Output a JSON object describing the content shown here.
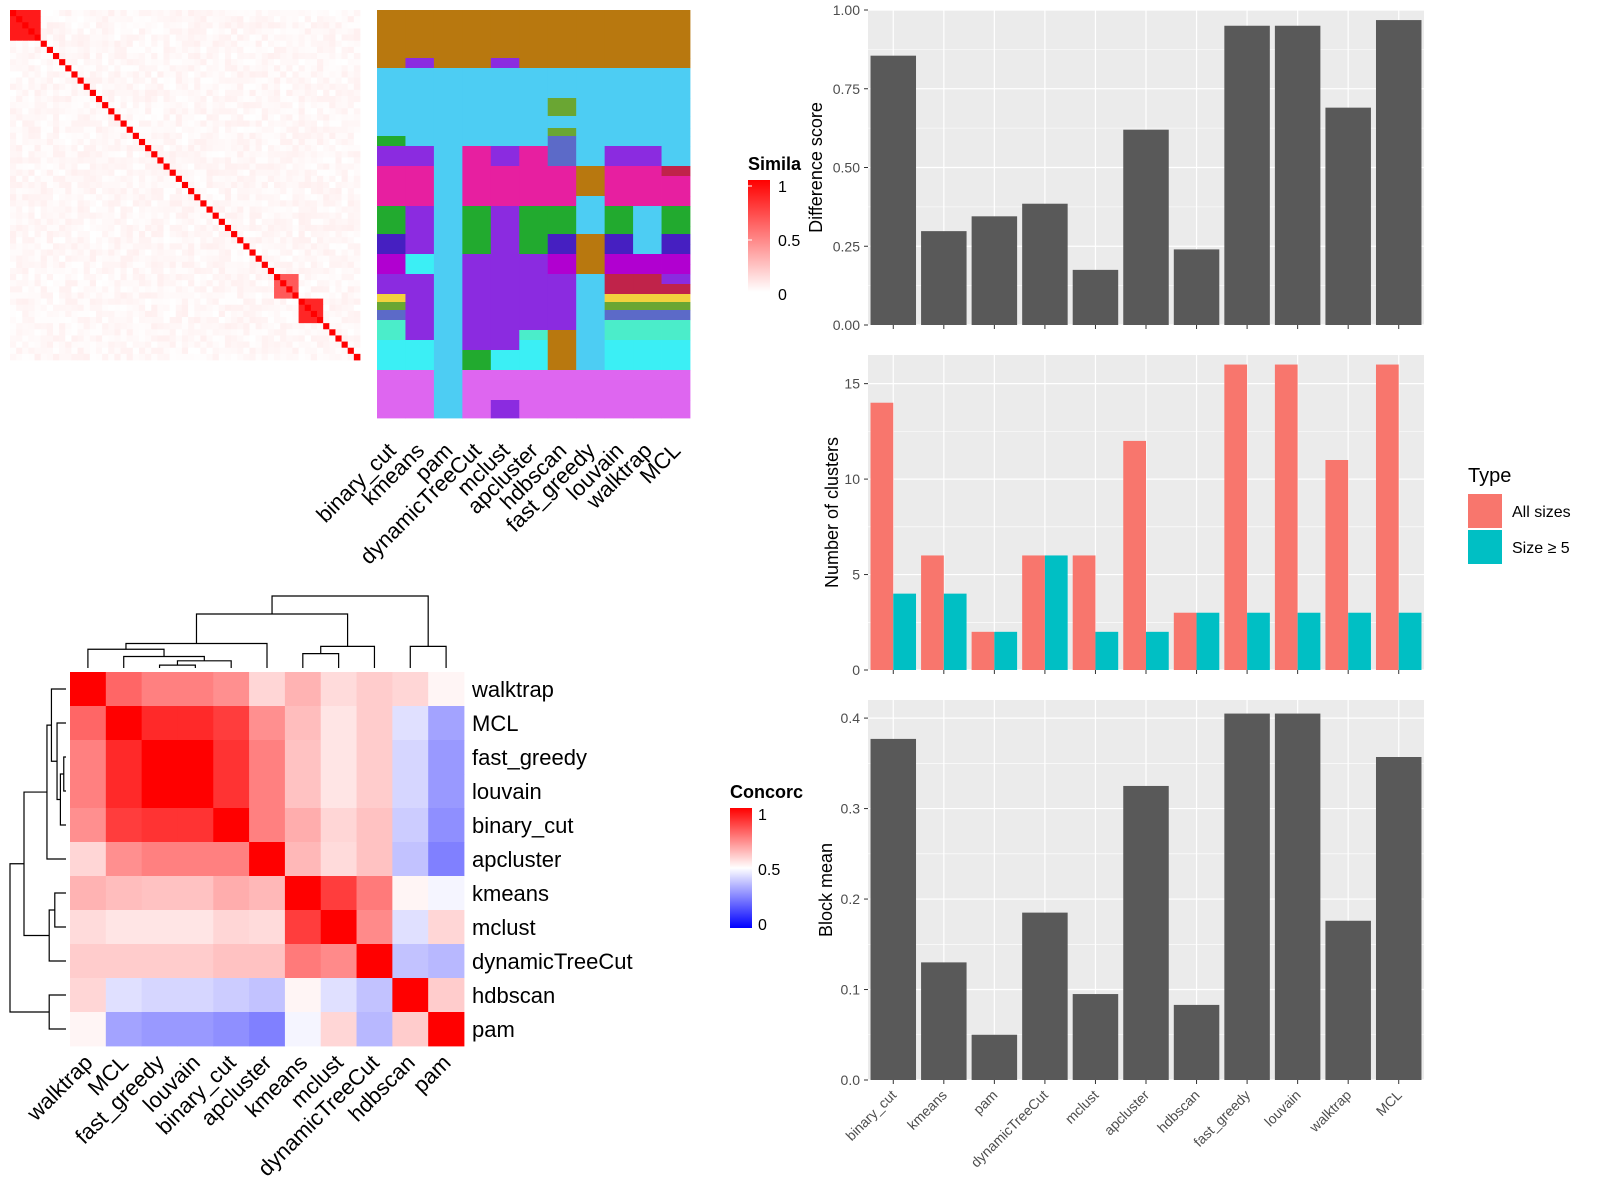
{
  "chart_data": [
    {
      "id": "similarity_heatmap",
      "type": "heatmap",
      "title": "",
      "legend_title": "Simila",
      "legend_ticks": [
        "1",
        "0.5",
        "0"
      ],
      "color_low": "#ffffff",
      "color_high": "#ff0000",
      "n_samples": 57,
      "diag_value": 1.0,
      "blocks": [
        {
          "start": 0,
          "end": 4,
          "value": 0.9
        },
        {
          "start": 43,
          "end": 46,
          "value": 0.65
        },
        {
          "start": 47,
          "end": 50,
          "value": 0.85
        }
      ],
      "background_value": 0.06
    },
    {
      "id": "cluster_assignment_heatmap",
      "type": "heatmap",
      "methods": [
        "binary_cut",
        "kmeans",
        "pam",
        "dynamicTreeCut",
        "mclust",
        "apcluster",
        "hdbscan",
        "fast_greedy",
        "louvain",
        "walktrap",
        "MCL"
      ],
      "palette": [
        "#B8780F",
        "#4DCDF3",
        "#8B2BE0",
        "#E71FA0",
        "#22AA2F",
        "#461FC1",
        "#B100D0",
        "#C0234A",
        "#F2D23E",
        "#6AA633",
        "#4BEDCA",
        "#3BEFF5",
        "#DE66F0",
        "#5C6AC8"
      ],
      "rows": [
        {
          "height": 48,
          "assign": [
            0,
            0,
            0,
            0,
            0,
            0,
            0,
            0,
            0,
            0,
            0
          ]
        },
        {
          "height": 10,
          "assign": [
            0,
            2,
            0,
            0,
            2,
            0,
            0,
            0,
            0,
            0,
            0
          ]
        },
        {
          "height": 30,
          "assign": [
            1,
            1,
            1,
            1,
            1,
            1,
            1,
            1,
            1,
            1,
            1
          ]
        },
        {
          "height": 18,
          "assign": [
            1,
            1,
            1,
            1,
            1,
            1,
            9,
            1,
            1,
            1,
            1
          ]
        },
        {
          "height": 12,
          "assign": [
            1,
            1,
            1,
            1,
            1,
            1,
            1,
            1,
            1,
            1,
            1
          ]
        },
        {
          "height": 8,
          "assign": [
            1,
            1,
            1,
            1,
            1,
            1,
            9,
            1,
            1,
            1,
            1
          ]
        },
        {
          "height": 10,
          "assign": [
            4,
            1,
            1,
            1,
            1,
            1,
            13,
            1,
            1,
            1,
            1
          ]
        },
        {
          "height": 20,
          "assign": [
            2,
            2,
            1,
            3,
            2,
            3,
            13,
            1,
            2,
            2,
            1
          ]
        },
        {
          "height": 10,
          "assign": [
            3,
            3,
            1,
            3,
            3,
            3,
            3,
            0,
            3,
            3,
            7
          ]
        },
        {
          "height": 20,
          "assign": [
            3,
            3,
            1,
            3,
            3,
            3,
            3,
            0,
            3,
            3,
            3
          ]
        },
        {
          "height": 10,
          "assign": [
            3,
            3,
            1,
            3,
            3,
            3,
            3,
            1,
            3,
            3,
            3
          ]
        },
        {
          "height": 20,
          "assign": [
            4,
            2,
            1,
            4,
            2,
            4,
            4,
            1,
            4,
            1,
            4
          ]
        },
        {
          "height": 8,
          "assign": [
            4,
            2,
            1,
            4,
            2,
            4,
            4,
            1,
            4,
            1,
            4
          ]
        },
        {
          "height": 10,
          "assign": [
            5,
            2,
            1,
            4,
            2,
            4,
            5,
            0,
            5,
            1,
            5
          ]
        },
        {
          "height": 10,
          "assign": [
            5,
            2,
            1,
            4,
            2,
            4,
            5,
            0,
            5,
            1,
            5
          ]
        },
        {
          "height": 10,
          "assign": [
            6,
            11,
            1,
            2,
            2,
            2,
            6,
            0,
            6,
            6,
            6
          ]
        },
        {
          "height": 10,
          "assign": [
            6,
            11,
            1,
            2,
            2,
            2,
            6,
            0,
            6,
            6,
            6
          ]
        },
        {
          "height": 10,
          "assign": [
            2,
            2,
            1,
            2,
            2,
            2,
            2,
            1,
            7,
            7,
            2
          ]
        },
        {
          "height": 10,
          "assign": [
            2,
            2,
            1,
            2,
            2,
            2,
            2,
            1,
            7,
            7,
            7
          ]
        },
        {
          "height": 8,
          "assign": [
            8,
            2,
            1,
            2,
            2,
            2,
            2,
            1,
            8,
            8,
            8
          ]
        },
        {
          "height": 8,
          "assign": [
            9,
            2,
            1,
            2,
            2,
            2,
            2,
            1,
            9,
            9,
            9
          ]
        },
        {
          "height": 10,
          "assign": [
            13,
            2,
            1,
            2,
            2,
            2,
            2,
            1,
            13,
            13,
            13
          ]
        },
        {
          "height": 10,
          "assign": [
            10,
            2,
            1,
            2,
            2,
            2,
            2,
            1,
            10,
            10,
            10
          ]
        },
        {
          "height": 10,
          "assign": [
            10,
            2,
            1,
            2,
            2,
            10,
            0,
            1,
            10,
            10,
            10
          ]
        },
        {
          "height": 10,
          "assign": [
            11,
            11,
            1,
            2,
            2,
            11,
            0,
            1,
            11,
            11,
            11
          ]
        },
        {
          "height": 20,
          "assign": [
            11,
            11,
            1,
            4,
            11,
            11,
            0,
            1,
            11,
            11,
            11
          ]
        },
        {
          "height": 30,
          "assign": [
            12,
            12,
            1,
            12,
            12,
            12,
            12,
            12,
            12,
            12,
            12
          ]
        },
        {
          "height": 18,
          "assign": [
            12,
            12,
            1,
            12,
            2,
            12,
            12,
            12,
            12,
            12,
            12
          ]
        }
      ]
    },
    {
      "id": "concordance_heatmap",
      "type": "heatmap",
      "legend_title": "Concorc",
      "legend_ticks": [
        "1",
        "0.5",
        "0"
      ],
      "color_low": "#0000ff",
      "color_mid": "#ffffff",
      "color_high": "#ff0000",
      "labels": [
        "walktrap",
        "MCL",
        "fast_greedy",
        "louvain",
        "binary_cut",
        "apcluster",
        "kmeans",
        "mclust",
        "dynamicTreeCut",
        "hdbscan",
        "pam"
      ],
      "matrix": [
        [
          1.0,
          0.8,
          0.75,
          0.75,
          0.72,
          0.58,
          0.65,
          0.57,
          0.6,
          0.58,
          0.52
        ],
        [
          0.8,
          1.0,
          0.92,
          0.92,
          0.88,
          0.72,
          0.63,
          0.55,
          0.6,
          0.44,
          0.32
        ],
        [
          0.75,
          0.92,
          1.0,
          1.0,
          0.9,
          0.75,
          0.62,
          0.55,
          0.6,
          0.42,
          0.3
        ],
        [
          0.75,
          0.92,
          1.0,
          1.0,
          0.9,
          0.75,
          0.62,
          0.55,
          0.6,
          0.42,
          0.3
        ],
        [
          0.72,
          0.88,
          0.9,
          0.9,
          1.0,
          0.75,
          0.66,
          0.58,
          0.62,
          0.4,
          0.28
        ],
        [
          0.58,
          0.72,
          0.75,
          0.75,
          0.75,
          1.0,
          0.64,
          0.57,
          0.62,
          0.38,
          0.25
        ],
        [
          0.65,
          0.63,
          0.62,
          0.62,
          0.66,
          0.64,
          1.0,
          0.88,
          0.76,
          0.52,
          0.48
        ],
        [
          0.57,
          0.55,
          0.55,
          0.55,
          0.58,
          0.57,
          0.88,
          1.0,
          0.73,
          0.44,
          0.58
        ],
        [
          0.6,
          0.6,
          0.6,
          0.6,
          0.62,
          0.62,
          0.76,
          0.73,
          1.0,
          0.38,
          0.36
        ],
        [
          0.58,
          0.44,
          0.42,
          0.42,
          0.4,
          0.38,
          0.52,
          0.44,
          0.38,
          1.0,
          0.6
        ],
        [
          0.52,
          0.32,
          0.3,
          0.3,
          0.28,
          0.25,
          0.48,
          0.58,
          0.36,
          0.6,
          1.0
        ]
      ],
      "dendrogram": "(((walktrap,(MCL,((fast_greedy,louvain),binary_cut))),apcluster),((kmeans,mclust),dynamicTreeCut)),(hdbscan,pam)"
    },
    {
      "id": "difference_score",
      "type": "bar",
      "categories": [
        "binary_cut",
        "kmeans",
        "pam",
        "dynamicTreeCut",
        "mclust",
        "apcluster",
        "hdbscan",
        "fast_greedy",
        "louvain",
        "walktrap",
        "MCL"
      ],
      "values": [
        0.855,
        0.298,
        0.345,
        0.385,
        0.175,
        0.62,
        0.24,
        0.95,
        0.95,
        0.69,
        0.968
      ],
      "ylabel": "Difference score",
      "xlabel": "",
      "ylim": [
        0,
        1.0
      ],
      "yticks": [
        "0.00",
        "0.25",
        "0.50",
        "0.75",
        "1.00"
      ],
      "bar_color": "#595959"
    },
    {
      "id": "number_of_clusters",
      "type": "bar",
      "categories": [
        "binary_cut",
        "kmeans",
        "pam",
        "dynamicTreeCut",
        "mclust",
        "apcluster",
        "hdbscan",
        "fast_greedy",
        "louvain",
        "walktrap",
        "MCL"
      ],
      "series": [
        {
          "name": "All sizes",
          "values": [
            14,
            6,
            2,
            6,
            6,
            12,
            3,
            16,
            16,
            11,
            16
          ],
          "color": "#F8766D"
        },
        {
          "name": "Size ≥ 5",
          "values": [
            4,
            4,
            2,
            6,
            2,
            2,
            3,
            3,
            3,
            3,
            3
          ],
          "color": "#00BFC4"
        }
      ],
      "ylabel": "Number of clusters",
      "ylim": [
        0,
        16.5
      ],
      "yticks": [
        "0",
        "5",
        "10",
        "15"
      ],
      "legend_title": "Type",
      "legend_position": "right"
    },
    {
      "id": "block_mean",
      "type": "bar",
      "categories": [
        "binary_cut",
        "kmeans",
        "pam",
        "dynamicTreeCut",
        "mclust",
        "apcluster",
        "hdbscan",
        "fast_greedy",
        "louvain",
        "walktrap",
        "MCL"
      ],
      "values": [
        0.377,
        0.13,
        0.05,
        0.185,
        0.095,
        0.325,
        0.083,
        0.405,
        0.405,
        0.176,
        0.357
      ],
      "ylabel": "Block mean",
      "ylim": [
        0,
        0.42
      ],
      "yticks": [
        "0.0",
        "0.1",
        "0.2",
        "0.3",
        "0.4"
      ],
      "bar_color": "#595959"
    }
  ]
}
